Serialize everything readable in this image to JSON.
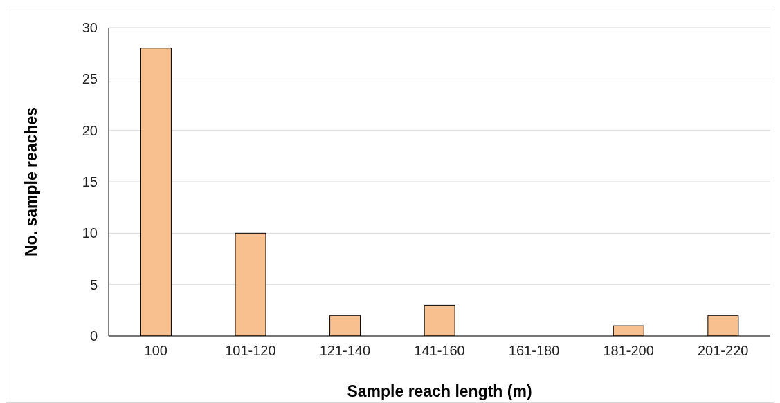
{
  "chart_data": {
    "type": "bar",
    "xlabel": "Sample reach length (m)",
    "ylabel": "No. sample reaches",
    "categories": [
      "100",
      "101-120",
      "121-140",
      "141-160",
      "161-180",
      "181-200",
      "201-220"
    ],
    "values": [
      28,
      10,
      2,
      3,
      0,
      1,
      2
    ],
    "color": "#f8c08f",
    "ylim": [
      0,
      30
    ],
    "yticks": [
      0,
      5,
      10,
      15,
      20,
      25,
      30
    ],
    "grid": "y"
  }
}
